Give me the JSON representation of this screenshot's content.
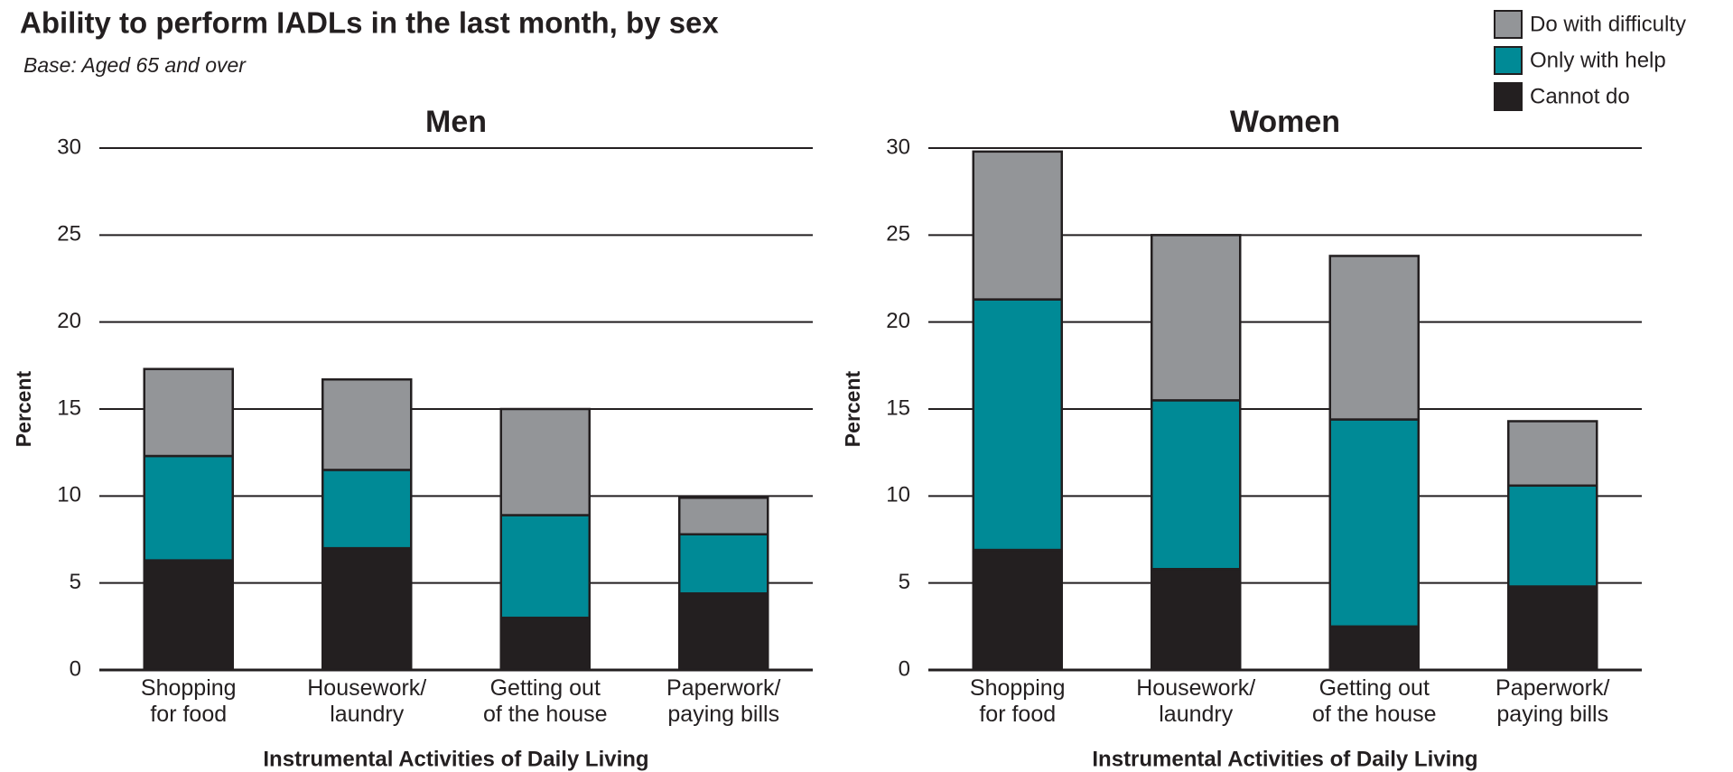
{
  "title": "Ability to perform IADLs in the last month, by sex",
  "subtitle": "Base: Aged 65 and over",
  "chart_data": [
    {
      "type": "stacked_bar",
      "title": "Men",
      "y_label": "Percent",
      "x_label": "Instrumental Activities of Daily Living",
      "categories": [
        "Shopping\nfor food",
        "Housework/\nlaundry",
        "Getting out\nof the house",
        "Paperwork/\npaying bills"
      ],
      "series": [
        {
          "name": "Cannot do",
          "color": "#231f20",
          "values": [
            6.3,
            7.0,
            3.0,
            4.4
          ]
        },
        {
          "name": "Only with help",
          "color": "#008a96",
          "values": [
            6.0,
            4.5,
            5.9,
            3.4
          ]
        },
        {
          "name": "Do with difficulty",
          "color": "#939598",
          "values": [
            5.0,
            5.2,
            6.1,
            2.1
          ]
        }
      ],
      "ylim": [
        0,
        30
      ],
      "yticks": [
        0,
        5,
        10,
        15,
        20,
        25,
        30
      ],
      "grid": true
    },
    {
      "type": "stacked_bar",
      "title": "Women",
      "y_label": "Percent",
      "x_label": "Instrumental Activities of Daily Living",
      "categories": [
        "Shopping\nfor food",
        "Housework/\nlaundry",
        "Getting out\nof the house",
        "Paperwork/\npaying bills"
      ],
      "series": [
        {
          "name": "Cannot do",
          "color": "#231f20",
          "values": [
            6.9,
            5.8,
            2.5,
            4.8
          ]
        },
        {
          "name": "Only with help",
          "color": "#008a96",
          "values": [
            14.4,
            9.7,
            11.9,
            5.8
          ]
        },
        {
          "name": "Do with difficulty",
          "color": "#939598",
          "values": [
            8.5,
            9.5,
            9.4,
            3.7
          ]
        }
      ],
      "ylim": [
        0,
        30
      ],
      "yticks": [
        0,
        5,
        10,
        15,
        20,
        25,
        30
      ],
      "grid": true
    }
  ]
}
